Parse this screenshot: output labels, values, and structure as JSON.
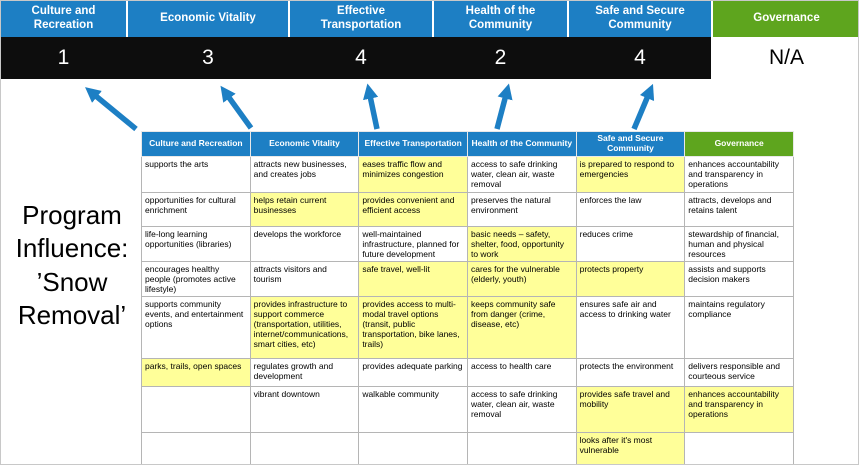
{
  "page": {
    "title": "Program Influence: ’Snow Removal’"
  },
  "colors": {
    "header_blue": "#1d7fc4",
    "header_green": "#5ea51e",
    "score_band_bg": "#0d0d0d",
    "highlight_yellow": "#ffff99",
    "arrow_blue": "#1d7fc4"
  },
  "scoreboard": {
    "columns": [
      {
        "label": "Culture and Recreation",
        "score": "1",
        "theme": "blue"
      },
      {
        "label": "Economic Vitality",
        "score": "3",
        "theme": "blue"
      },
      {
        "label": "Effective Transportation",
        "score": "4",
        "theme": "blue"
      },
      {
        "label": "Health of the Community",
        "score": "2",
        "theme": "blue"
      },
      {
        "label": "Safe and Secure Community",
        "score": "4",
        "theme": "blue"
      },
      {
        "label": "Governance",
        "score": "N/A",
        "theme": "green"
      }
    ]
  },
  "matrix": {
    "headers": [
      {
        "label": "Culture and Recreation",
        "theme": "blue"
      },
      {
        "label": "Economic Vitality",
        "theme": "blue"
      },
      {
        "label": "Effective Transportation",
        "theme": "blue"
      },
      {
        "label": "Health of the Community",
        "theme": "blue"
      },
      {
        "label": "Safe and Secure Community",
        "theme": "blue"
      },
      {
        "label": "Governance",
        "theme": "green"
      }
    ],
    "rows": [
      [
        {
          "text": "supports the arts",
          "highlight": false
        },
        {
          "text": "attracts new businesses, and creates jobs",
          "highlight": false
        },
        {
          "text": "eases traffic flow and minimizes congestion",
          "highlight": true
        },
        {
          "text": "access to safe drinking water, clean air, waste removal",
          "highlight": false
        },
        {
          "text": "is prepared to respond to emergencies",
          "highlight": true
        },
        {
          "text": "enhances accountability and transparency in operations",
          "highlight": false
        }
      ],
      [
        {
          "text": "opportunities for cultural enrichment",
          "highlight": false
        },
        {
          "text": "helps retain current businesses",
          "highlight": true
        },
        {
          "text": "provides convenient and efficient access",
          "highlight": true
        },
        {
          "text": "preserves the natural environment",
          "highlight": false
        },
        {
          "text": "enforces the law",
          "highlight": false
        },
        {
          "text": "attracts, develops and retains talent",
          "highlight": false
        }
      ],
      [
        {
          "text": "life-long learning opportunities (libraries)",
          "highlight": false
        },
        {
          "text": "develops the workforce",
          "highlight": false
        },
        {
          "text": "well-maintained infrastructure, planned for future development",
          "highlight": false
        },
        {
          "text": "basic needs – safety, shelter, food, opportunity to work",
          "highlight": true
        },
        {
          "text": "reduces crime",
          "highlight": false
        },
        {
          "text": "stewardship of financial, human and physical resources",
          "highlight": false
        }
      ],
      [
        {
          "text": "encourages healthy people (promotes active lifestyle)",
          "highlight": false
        },
        {
          "text": "attracts visitors and tourism",
          "highlight": false
        },
        {
          "text": "safe travel, well-lit",
          "highlight": true
        },
        {
          "text": "cares for the vulnerable (elderly, youth)",
          "highlight": true
        },
        {
          "text": "protects property",
          "highlight": true
        },
        {
          "text": "assists and supports decision makers",
          "highlight": false
        }
      ],
      [
        {
          "text": "supports community events, and entertainment options",
          "highlight": false
        },
        {
          "text": "provides infrastructure to support commerce (transportation, utilities, internet/communications, smart cities, etc)",
          "highlight": true
        },
        {
          "text": "provides access to multi-modal travel options (transit, public transportation, bike lanes, trails)",
          "highlight": true
        },
        {
          "text": "keeps community safe from danger (crime, disease, etc)",
          "highlight": true
        },
        {
          "text": "ensures safe air and access to drinking water",
          "highlight": false
        },
        {
          "text": "maintains regulatory compliance",
          "highlight": false
        }
      ],
      [
        {
          "text": "parks, trails, open spaces",
          "highlight": true
        },
        {
          "text": "regulates growth and development",
          "highlight": false
        },
        {
          "text": "provides adequate parking",
          "highlight": false
        },
        {
          "text": "access to health care",
          "highlight": false
        },
        {
          "text": "protects the environment",
          "highlight": false
        },
        {
          "text": "delivers responsible and courteous service",
          "highlight": false
        }
      ],
      [
        {
          "text": "",
          "highlight": false
        },
        {
          "text": "vibrant downtown",
          "highlight": false
        },
        {
          "text": "walkable community",
          "highlight": false
        },
        {
          "text": "access to safe drinking water, clean air, waste removal",
          "highlight": false
        },
        {
          "text": "provides safe travel and mobility",
          "highlight": true
        },
        {
          "text": "enhances accountability and transparency in operations",
          "highlight": true
        }
      ],
      [
        {
          "text": "",
          "highlight": false
        },
        {
          "text": "",
          "highlight": false
        },
        {
          "text": "",
          "highlight": false
        },
        {
          "text": "",
          "highlight": false
        },
        {
          "text": "looks after it's most vulnerable",
          "highlight": true
        },
        {
          "text": "",
          "highlight": false
        }
      ]
    ]
  }
}
